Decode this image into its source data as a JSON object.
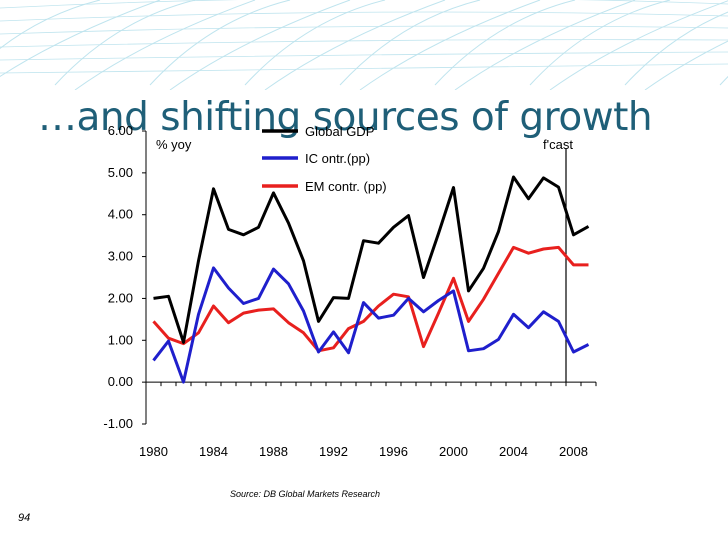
{
  "slide": {
    "title": "…and shifting sources of growth",
    "source": "Source: DB Global Markets Research",
    "page_number": "94"
  },
  "colors": {
    "title": "#1f5f78",
    "deco": "#bfe4ee"
  },
  "chart_data": {
    "type": "line",
    "title": "",
    "xlabel": "",
    "ylabel": "",
    "y_unit_label": "% yoy",
    "forecast_label": "f'cast",
    "forecast_x": 2007.5,
    "xlim": [
      1979.5,
      2009.5
    ],
    "ylim": [
      -1,
      6
    ],
    "x_ticks": [
      1980,
      1984,
      1988,
      1992,
      1996,
      2000,
      2004,
      2008
    ],
    "y_ticks": [
      "-1.00",
      "0.00",
      "1.00",
      "2.00",
      "3.00",
      "4.00",
      "5.00",
      "6.00"
    ],
    "y_tick_values": [
      -1,
      0,
      1,
      2,
      3,
      4,
      5,
      6
    ],
    "grid": false,
    "legend_position": "top-center",
    "x": [
      1980,
      1981,
      1982,
      1983,
      1984,
      1985,
      1986,
      1987,
      1988,
      1989,
      1990,
      1991,
      1992,
      1993,
      1994,
      1995,
      1996,
      1997,
      1998,
      1999,
      2000,
      2001,
      2002,
      2003,
      2004,
      2005,
      2006,
      2007,
      2008,
      2009
    ],
    "series": [
      {
        "name": "Global GDP",
        "color": "#000000",
        "values": [
          2.0,
          2.05,
          0.95,
          2.9,
          4.62,
          3.65,
          3.52,
          3.7,
          4.52,
          3.8,
          2.9,
          1.45,
          2.02,
          2.0,
          3.38,
          3.32,
          3.7,
          3.98,
          2.5,
          3.55,
          4.65,
          2.18,
          2.72,
          3.6,
          4.9,
          4.38,
          4.88,
          4.66,
          3.52,
          3.72
        ]
      },
      {
        "name": "IC ontr.(pp)",
        "color": "#1f1fcc",
        "values": [
          0.52,
          0.98,
          0.0,
          1.62,
          2.73,
          2.25,
          1.88,
          2.0,
          2.7,
          2.35,
          1.7,
          0.72,
          1.2,
          0.7,
          1.9,
          1.53,
          1.6,
          2.0,
          1.68,
          1.95,
          2.18,
          0.75,
          0.8,
          1.02,
          1.62,
          1.3,
          1.68,
          1.45,
          0.72,
          0.9
        ]
      },
      {
        "name": "EM contr. (pp)",
        "color": "#e8201e",
        "values": [
          1.45,
          1.05,
          0.92,
          1.18,
          1.82,
          1.42,
          1.65,
          1.72,
          1.75,
          1.42,
          1.18,
          0.75,
          0.82,
          1.28,
          1.45,
          1.82,
          2.1,
          2.04,
          0.85,
          1.65,
          2.48,
          1.45,
          1.98,
          2.6,
          3.22,
          3.08,
          3.18,
          3.22,
          2.8,
          2.8
        ]
      }
    ]
  }
}
